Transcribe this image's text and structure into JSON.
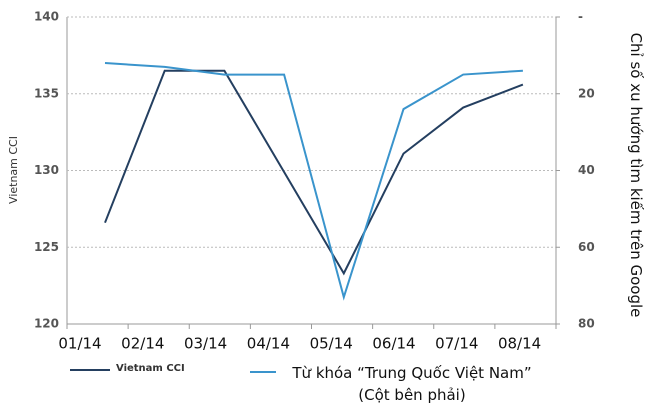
{
  "chart_data": {
    "type": "line",
    "categories": [
      "01/14",
      "02/14",
      "03/14",
      "04/14",
      "05/14",
      "06/14",
      "07/14",
      "08/14"
    ],
    "ylabel": "Vietnam CCI",
    "y2label": "Chỉ số xu hướng tìm kiếm trên Google",
    "ylim": [
      120,
      140
    ],
    "yticks": [
      120,
      125,
      130,
      135,
      140
    ],
    "y2lim": [
      0,
      80
    ],
    "y2ticks": [
      {
        "value": 0,
        "label": "-"
      },
      20,
      40,
      60,
      80
    ],
    "y2_inverted": true,
    "grid": true,
    "legend": "bottom",
    "series": [
      {
        "name": "Vietnam CCI",
        "color": "#243f60",
        "values": [
          126.6,
          136.5,
          136.5,
          129.9,
          123.3,
          131.1,
          134.1,
          135.6
        ]
      },
      {
        "name": "Từ khóa “Trung Quốc Việt Nam” (Cột bên phải)",
        "color": "#3a94cc",
        "axis": "y2",
        "values": [
          12,
          13,
          15,
          15,
          73,
          24,
          15,
          14
        ]
      }
    ]
  }
}
